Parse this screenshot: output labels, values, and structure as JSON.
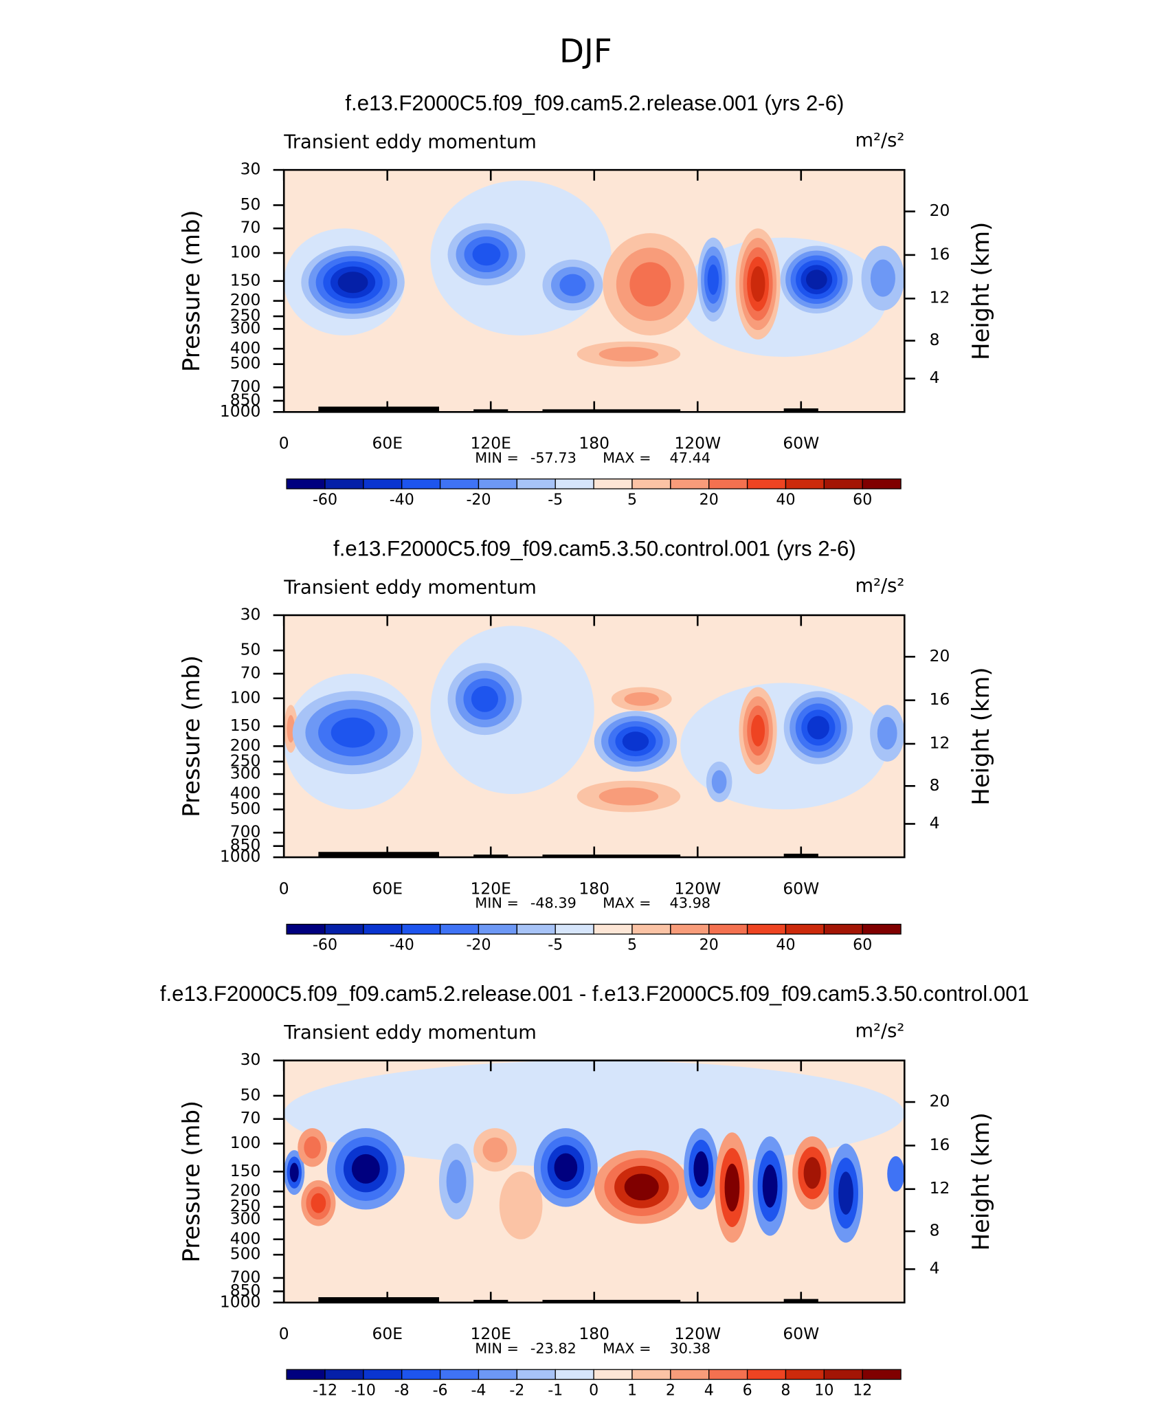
{
  "title": "DJF",
  "chart_data": [
    {
      "type": "contour",
      "title": "f.e13.F2000C5.f09_f09.cam5.2.release.001 (yrs 2-6)",
      "left_label": "Transient eddy momentum",
      "units": "m²/s²",
      "ylabel": "Pressure (mb)",
      "y2label": "Height (km)",
      "xlim": [
        0,
        360
      ],
      "xticks": [
        0,
        {
          "value": 60,
          "label": "60E"
        },
        {
          "value": 120,
          "label": "120E"
        },
        {
          "value": 180,
          "label": "180"
        },
        {
          "value": 240,
          "label": "120W"
        },
        {
          "value": 300,
          "label": "60W"
        }
      ],
      "ylim": [
        1000,
        30
      ],
      "log_y": true,
      "yticks": [
        30,
        50,
        70,
        100,
        150,
        200,
        250,
        300,
        400,
        500,
        700,
        850,
        1000
      ],
      "y2ticks": [
        4,
        8,
        12,
        16,
        20
      ],
      "min_label": "MIN =",
      "min": -57.73,
      "max_label": "MAX =",
      "max": 47.44,
      "levels": [
        -60,
        -50,
        -40,
        -30,
        -20,
        -10,
        -5,
        0,
        5,
        10,
        20,
        30,
        40,
        50,
        60
      ],
      "colorbar_ticks": [
        -60,
        -40,
        -20,
        -5,
        5,
        20,
        40,
        60
      ],
      "colors": [
        "#00007f",
        "#0520a8",
        "#0a35d0",
        "#1e55ee",
        "#3f73f5",
        "#6d98f5",
        "#a7c3f7",
        "#d6e5fb",
        "#fde6d6",
        "#fbc3a5",
        "#f89c7a",
        "#f47150",
        "#ee4422",
        "#cc2a0c",
        "#a31505",
        "#800000"
      ],
      "features": [
        {
          "lon": [
            0,
            70
          ],
          "p": [
            70,
            330
          ],
          "levels": [
            0
          ]
        },
        {
          "lon": [
            85,
            190
          ],
          "p": [
            35,
            330
          ],
          "levels": [
            0
          ]
        },
        {
          "lon": [
            230,
            350
          ],
          "p": [
            80,
            450
          ],
          "levels": [
            0
          ]
        },
        {
          "lon": [
            10,
            70
          ],
          "p": [
            90,
            260
          ],
          "levels": [
            -5,
            -10,
            -20,
            -30,
            -40,
            -50
          ]
        },
        {
          "lon": [
            95,
            140
          ],
          "p": [
            65,
            160
          ],
          "levels": [
            -5,
            -10,
            -20,
            -30
          ]
        },
        {
          "lon": [
            150,
            185
          ],
          "p": [
            110,
            230
          ],
          "levels": [
            -5,
            -10,
            -20
          ]
        },
        {
          "lon": [
            185,
            240
          ],
          "p": [
            75,
            330
          ],
          "levels": [
            5,
            10,
            20
          ]
        },
        {
          "lon": [
            170,
            230
          ],
          "p": [
            360,
            520
          ],
          "levels": [
            5,
            10
          ]
        },
        {
          "lon": [
            240,
            258
          ],
          "p": [
            80,
            270
          ],
          "levels": [
            -5,
            -10,
            -20,
            -30
          ]
        },
        {
          "lon": [
            262,
            288
          ],
          "p": [
            70,
            350
          ],
          "levels": [
            5,
            10,
            20,
            30,
            40
          ]
        },
        {
          "lon": [
            288,
            330
          ],
          "p": [
            90,
            240
          ],
          "levels": [
            -5,
            -10,
            -20,
            -30,
            -40,
            -50
          ]
        },
        {
          "lon": [
            335,
            360
          ],
          "p": [
            90,
            230
          ],
          "levels": [
            -5,
            -10
          ]
        }
      ]
    },
    {
      "type": "contour",
      "title": "f.e13.F2000C5.f09_f09.cam5.3.50.control.001 (yrs 2-6)",
      "left_label": "Transient eddy momentum",
      "units": "m²/s²",
      "ylabel": "Pressure (mb)",
      "y2label": "Height (km)",
      "xlim": [
        0,
        360
      ],
      "xticks": [
        0,
        {
          "value": 60,
          "label": "60E"
        },
        {
          "value": 120,
          "label": "120E"
        },
        {
          "value": 180,
          "label": "180"
        },
        {
          "value": 240,
          "label": "120W"
        },
        {
          "value": 300,
          "label": "60W"
        }
      ],
      "ylim": [
        1000,
        30
      ],
      "log_y": true,
      "yticks": [
        30,
        50,
        70,
        100,
        150,
        200,
        250,
        300,
        400,
        500,
        700,
        850,
        1000
      ],
      "y2ticks": [
        4,
        8,
        12,
        16,
        20
      ],
      "min_label": "MIN =",
      "min": -48.39,
      "max_label": "MAX =",
      "max": 43.98,
      "levels": [
        -60,
        -50,
        -40,
        -30,
        -20,
        -10,
        -5,
        0,
        5,
        10,
        20,
        30,
        40,
        50,
        60
      ],
      "colorbar_ticks": [
        -60,
        -40,
        -20,
        -5,
        5,
        20,
        40,
        60
      ],
      "colors": [
        "#00007f",
        "#0520a8",
        "#0a35d0",
        "#1e55ee",
        "#3f73f5",
        "#6d98f5",
        "#a7c3f7",
        "#d6e5fb",
        "#fde6d6",
        "#fbc3a5",
        "#f89c7a",
        "#f47150",
        "#ee4422",
        "#cc2a0c",
        "#a31505",
        "#800000"
      ],
      "features": [
        {
          "lon": [
            0,
            80
          ],
          "p": [
            70,
            500
          ],
          "levels": [
            0
          ]
        },
        {
          "lon": [
            85,
            180
          ],
          "p": [
            35,
            400
          ],
          "levels": [
            0
          ]
        },
        {
          "lon": [
            230,
            350
          ],
          "p": [
            80,
            500
          ],
          "levels": [
            0
          ]
        },
        {
          "lon": [
            0,
            8
          ],
          "p": [
            110,
            220
          ],
          "levels": [
            5,
            10
          ]
        },
        {
          "lon": [
            5,
            75
          ],
          "p": [
            90,
            300
          ],
          "levels": [
            -5,
            -10,
            -20,
            -30
          ]
        },
        {
          "lon": [
            95,
            138
          ],
          "p": [
            60,
            170
          ],
          "levels": [
            -5,
            -10,
            -20,
            -30
          ]
        },
        {
          "lon": [
            180,
            228
          ],
          "p": [
            120,
            290
          ],
          "levels": [
            -5,
            -10,
            -20,
            -30,
            -40
          ]
        },
        {
          "lon": [
            190,
            225
          ],
          "p": [
            85,
            120
          ],
          "levels": [
            5,
            10
          ]
        },
        {
          "lon": [
            170,
            230
          ],
          "p": [
            330,
            520
          ],
          "levels": [
            5,
            10
          ]
        },
        {
          "lon": [
            264,
            286
          ],
          "p": [
            85,
            300
          ],
          "levels": [
            5,
            10,
            20,
            30
          ]
        },
        {
          "lon": [
            290,
            330
          ],
          "p": [
            90,
            260
          ],
          "levels": [
            -5,
            -10,
            -20,
            -30,
            -40
          ]
        },
        {
          "lon": [
            340,
            360
          ],
          "p": [
            110,
            250
          ],
          "levels": [
            -5,
            -10
          ]
        },
        {
          "lon": [
            245,
            260
          ],
          "p": [
            250,
            450
          ],
          "levels": [
            -5,
            -10
          ]
        }
      ]
    },
    {
      "type": "contour",
      "title": "f.e13.F2000C5.f09_f09.cam5.2.release.001 - f.e13.F2000C5.f09_f09.cam5.3.50.control.001",
      "left_label": "Transient eddy momentum",
      "units": "m²/s²",
      "ylabel": "Pressure (mb)",
      "y2label": "Height (km)",
      "xlim": [
        0,
        360
      ],
      "xticks": [
        0,
        {
          "value": 60,
          "label": "60E"
        },
        {
          "value": 120,
          "label": "120E"
        },
        {
          "value": 180,
          "label": "180"
        },
        {
          "value": 240,
          "label": "120W"
        },
        {
          "value": 300,
          "label": "60W"
        }
      ],
      "ylim": [
        1000,
        30
      ],
      "log_y": true,
      "yticks": [
        30,
        50,
        70,
        100,
        150,
        200,
        250,
        300,
        400,
        500,
        700,
        850,
        1000
      ],
      "y2ticks": [
        4,
        8,
        12,
        16,
        20
      ],
      "min_label": "MIN =",
      "min": -23.82,
      "max_label": "MAX =",
      "max": 30.38,
      "levels": [
        -12,
        -10,
        -8,
        -6,
        -4,
        -2,
        -1,
        0,
        1,
        2,
        4,
        6,
        8,
        10,
        12
      ],
      "colorbar_ticks": [
        -12,
        -10,
        -8,
        -6,
        -4,
        -2,
        -1,
        0,
        1,
        2,
        4,
        6,
        8,
        10,
        12
      ],
      "colors": [
        "#00007f",
        "#0520a8",
        "#0a35d0",
        "#1e55ee",
        "#3f73f5",
        "#6d98f5",
        "#a7c3f7",
        "#d6e5fb",
        "#fde6d6",
        "#fbc3a5",
        "#f89c7a",
        "#f47150",
        "#ee4422",
        "#cc2a0c",
        "#a31505",
        "#800000"
      ],
      "features": [
        {
          "lon": [
            0,
            360
          ],
          "p": [
            30,
            140
          ],
          "levels": [
            0
          ]
        },
        {
          "lon": [
            0,
            12
          ],
          "p": [
            110,
            210
          ],
          "levels": [
            -2,
            -6,
            -12
          ]
        },
        {
          "lon": [
            8,
            25
          ],
          "p": [
            80,
            140
          ],
          "levels": [
            2,
            4
          ]
        },
        {
          "lon": [
            10,
            30
          ],
          "p": [
            170,
            330
          ],
          "levels": [
            2,
            4,
            6
          ]
        },
        {
          "lon": [
            25,
            70
          ],
          "p": [
            80,
            260
          ],
          "levels": [
            -2,
            -4,
            -8,
            -12
          ]
        },
        {
          "lon": [
            90,
            110
          ],
          "p": [
            100,
            300
          ],
          "levels": [
            -1,
            -2
          ]
        },
        {
          "lon": [
            110,
            135
          ],
          "p": [
            80,
            150
          ],
          "levels": [
            1,
            2
          ]
        },
        {
          "lon": [
            125,
            150
          ],
          "p": [
            150,
            400
          ],
          "levels": [
            1
          ]
        },
        {
          "lon": [
            145,
            182
          ],
          "p": [
            80,
            250
          ],
          "levels": [
            -2,
            -4,
            -8,
            -12
          ]
        },
        {
          "lon": [
            180,
            235
          ],
          "p": [
            110,
            320
          ],
          "levels": [
            2,
            4,
            8,
            12
          ]
        },
        {
          "lon": [
            232,
            252
          ],
          "p": [
            80,
            260
          ],
          "levels": [
            -2,
            -6,
            -12
          ]
        },
        {
          "lon": [
            250,
            270
          ],
          "p": [
            85,
            420
          ],
          "levels": [
            2,
            6,
            12
          ]
        },
        {
          "lon": [
            272,
            292
          ],
          "p": [
            90,
            380
          ],
          "levels": [
            -2,
            -6,
            -12
          ]
        },
        {
          "lon": [
            295,
            318
          ],
          "p": [
            90,
            260
          ],
          "levels": [
            2,
            6,
            10
          ]
        },
        {
          "lon": [
            316,
            336
          ],
          "p": [
            100,
            420
          ],
          "levels": [
            -2,
            -6,
            -10
          ]
        },
        {
          "lon": [
            350,
            360
          ],
          "p": [
            120,
            200
          ],
          "levels": [
            -4
          ]
        }
      ]
    }
  ]
}
